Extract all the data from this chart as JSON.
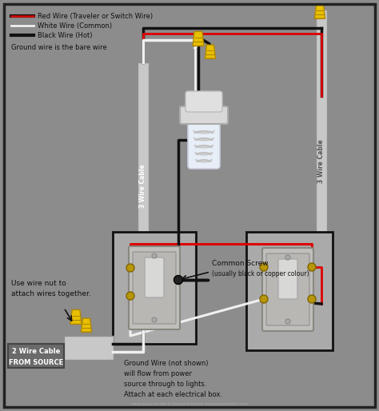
{
  "bg_color": "#8c8c8c",
  "border_color": "#1a1a1a",
  "legend": [
    {
      "label": "Red Wire (Traveler or Switch Wire)",
      "color": "#dd0000"
    },
    {
      "label": "White Wire (Common)",
      "color": "#ffffff"
    },
    {
      "label": "Black Wire (Hot)",
      "color": "#111111"
    },
    {
      "label": "Ground wire is the bare wire",
      "color": null
    }
  ],
  "cable_label_left": "3 Wire Cable",
  "cable_label_right": "3 Wire Cable",
  "cable_label_bottom_line1": "2 Wire Cable",
  "cable_label_bottom_line2": "FROM SOURCE",
  "label_wirenuts": "Use wire nut to\nattach wires together.",
  "label_common_line1": "Common Screw",
  "label_common_line2": "(usually black or copper colour)",
  "label_ground_line1": "Ground Wire (not shown)",
  "label_ground_line2": "will flow from power",
  "label_ground_line3": "source through to lights.",
  "label_ground_line4": "Attach at each electrical box.",
  "watermark": "www.easy-to-do-it-yourself-home-improvements.com",
  "wire_nut_color": "#e8c000",
  "wire_nut_dark": "#b08800",
  "sheath_color": "#c8c8c8",
  "sheath_edge": "#909090",
  "red_wire": "#dd0000",
  "white_wire": "#f0f0f0",
  "black_wire": "#111111",
  "switch_face": "#c8c8c8",
  "switch_dark": "#888888",
  "screw_color": "#b8960a",
  "screw_edge": "#806400"
}
